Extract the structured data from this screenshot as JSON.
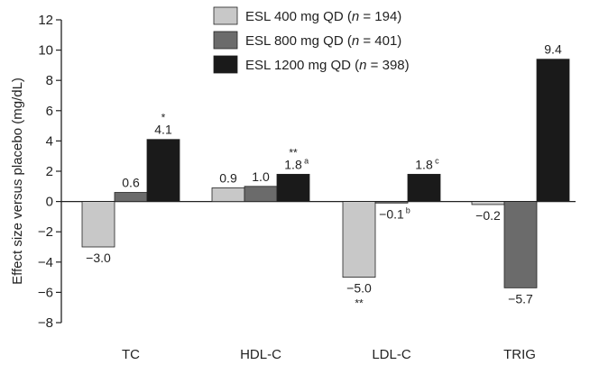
{
  "chart_data": {
    "type": "bar",
    "title": "",
    "ylabel": "Effect size versus placebo (mg/dL)",
    "xlabel": "",
    "ylim": [
      -8,
      12
    ],
    "yticks": [
      12,
      10,
      8,
      6,
      4,
      2,
      0,
      -2,
      -4,
      -6,
      -8
    ],
    "ytick_labels": [
      "12",
      "10",
      "8",
      "6",
      "4",
      "2",
      "0",
      "−2",
      "−4",
      "−6",
      "−8"
    ],
    "grid": false,
    "legend_position": "top-center",
    "categories": [
      "TC",
      "HDL-C",
      "LDL-C",
      "TRIG"
    ],
    "series": [
      {
        "legend_prefix": "ESL 400 mg QD (",
        "legend_n": "n",
        "legend_suffix": " = 194)",
        "color": "#c8c8c8",
        "values": [
          -3.0,
          0.9,
          -5.0,
          -0.2
        ],
        "labels": [
          "−3.0",
          "0.9",
          "−5.0",
          "−0.2"
        ],
        "sups": [
          "",
          "",
          "",
          ""
        ],
        "stars": [
          "",
          "",
          "**",
          ""
        ]
      },
      {
        "legend_prefix": "ESL 800 mg QD (",
        "legend_n": "n",
        "legend_suffix": " = 401)",
        "color": "#6b6b6b",
        "values": [
          0.6,
          1.0,
          -0.1,
          -5.7
        ],
        "labels": [
          "0.6",
          "1.0",
          "−0.1",
          "−5.7"
        ],
        "sups": [
          "",
          "",
          "b",
          ""
        ],
        "stars": [
          "",
          "",
          "",
          ""
        ]
      },
      {
        "legend_prefix": "ESL 1200 mg QD (",
        "legend_n": "n",
        "legend_suffix": " = 398)",
        "color": "#1a1a1a",
        "values": [
          4.1,
          1.8,
          1.8,
          9.4
        ],
        "labels": [
          "4.1",
          "1.8",
          "1.8",
          "9.4"
        ],
        "sups": [
          "",
          "a",
          "c",
          ""
        ],
        "stars": [
          "*",
          "**",
          "",
          ""
        ]
      }
    ]
  }
}
